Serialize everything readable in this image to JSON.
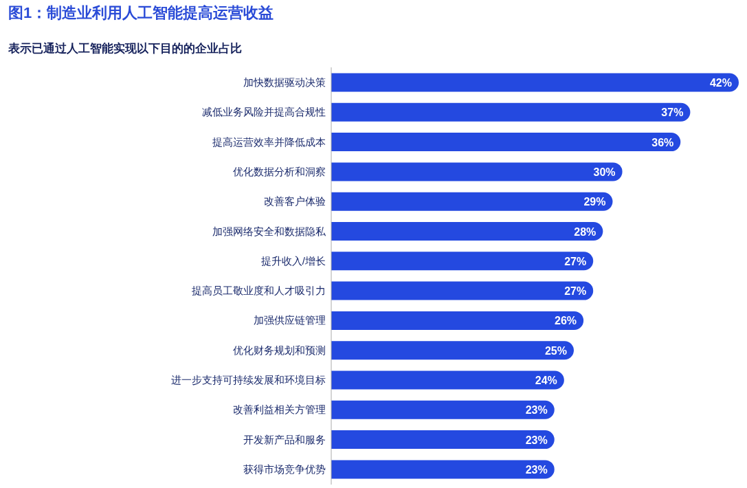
{
  "chart_data": {
    "type": "bar",
    "orientation": "horizontal",
    "title": "图1：制造业利用人工智能提高运营收益",
    "subtitle": "表示已通过人工智能实现以下目的的企业占比",
    "categories": [
      "加快数据驱动决策",
      "减低业务风险并提高合规性",
      "提高运营效率并降低成本",
      "优化数据分析和洞察",
      "改善客户体验",
      "加强网络安全和数据隐私",
      "提升收入/增长",
      "提高员工敬业度和人才吸引力",
      "加强供应链管理",
      "优化财务规划和预测",
      "进一步支持可持续发展和环境目标",
      "改善利益相关方管理",
      "开发新产品和服务",
      "获得市场竞争优势"
    ],
    "values": [
      42,
      37,
      36,
      30,
      29,
      28,
      27,
      27,
      26,
      25,
      24,
      23,
      23,
      23
    ],
    "value_labels": [
      "42%",
      "37%",
      "36%",
      "30%",
      "29%",
      "28%",
      "27%",
      "27%",
      "26%",
      "25%",
      "24%",
      "23%",
      "23%",
      "23%"
    ],
    "color": "#2449e0"
  }
}
